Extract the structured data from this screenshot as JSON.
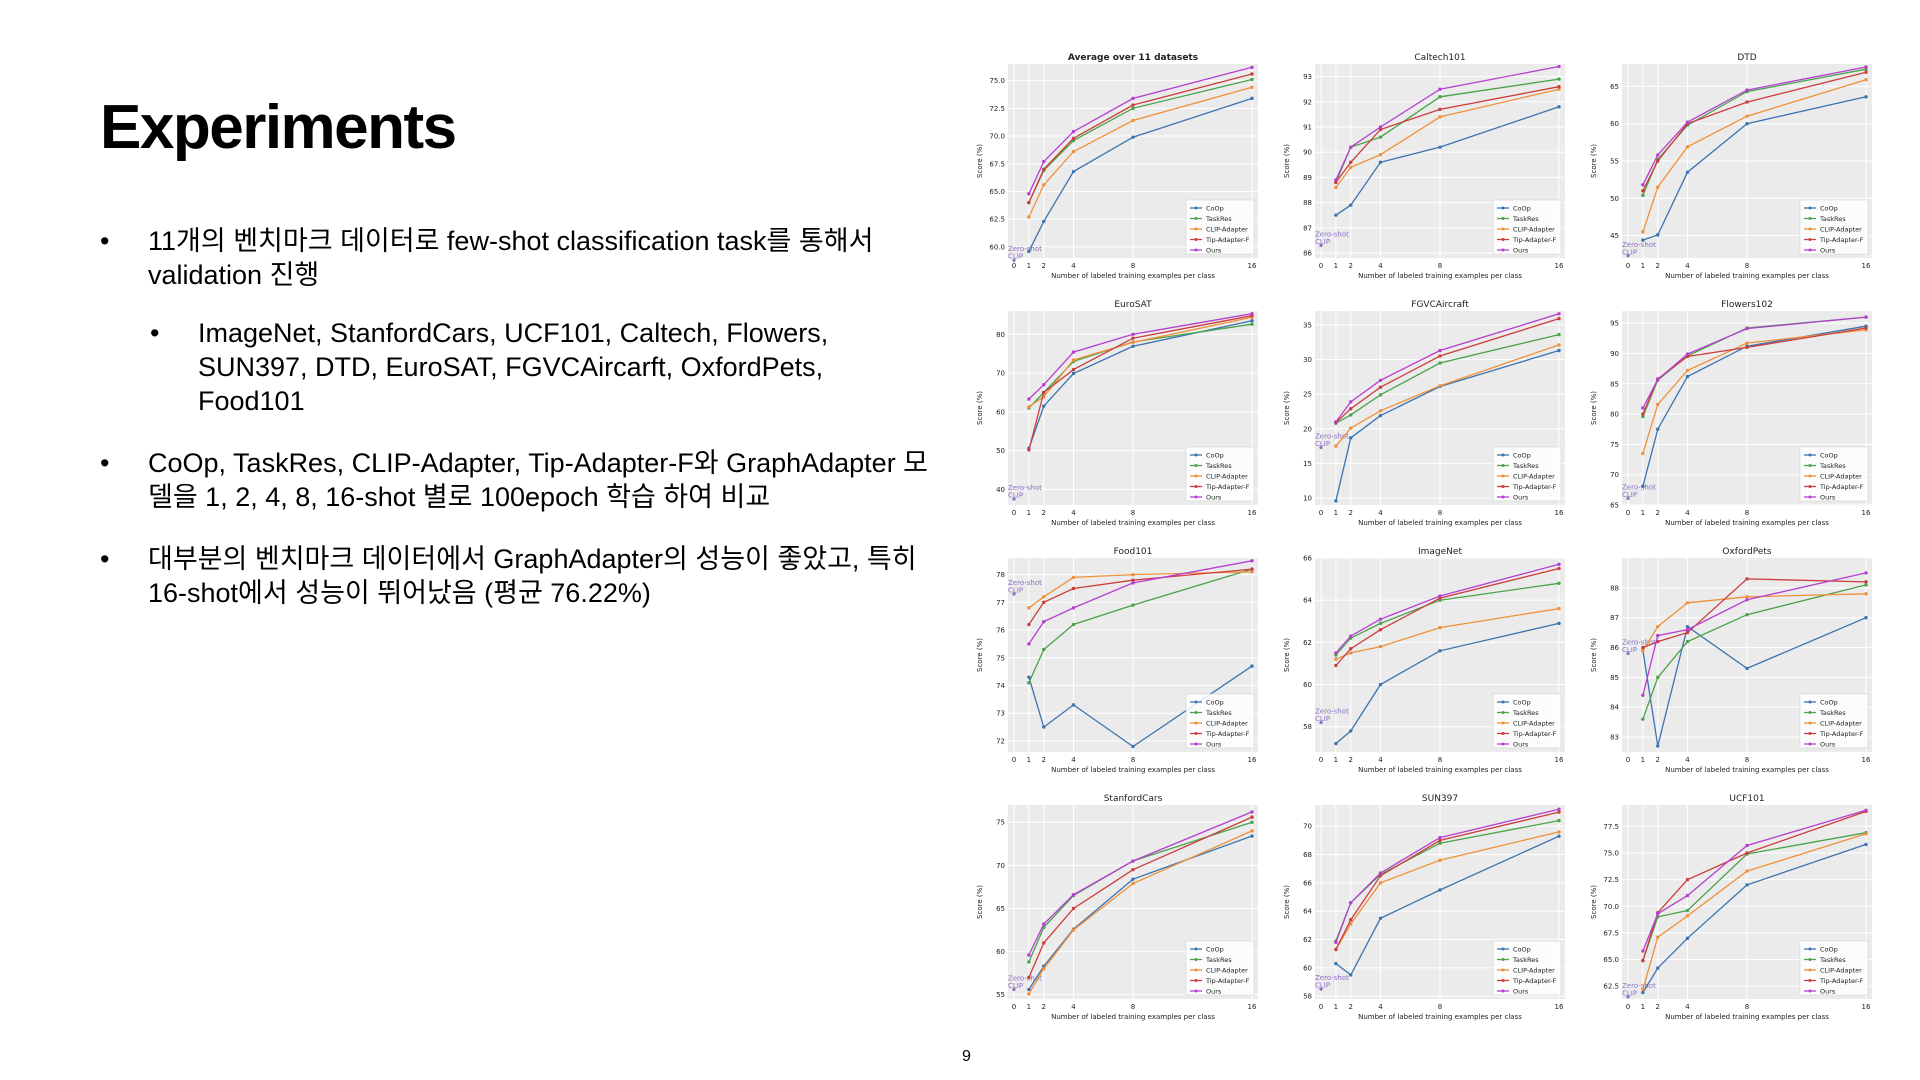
{
  "slide": {
    "title": "Experiments",
    "page_number": "9",
    "bullets": [
      {
        "level": 1,
        "text": "11개의 벤치마크 데이터로 few-shot classification task를 통해서 validation 진행"
      },
      {
        "level": 2,
        "text": "ImageNet, StanfordCars, UCF101, Caltech, Flowers, SUN397, DTD, EuroSAT, FGVCAircarft, OxfordPets, Food101"
      },
      {
        "level": 1,
        "text": "CoOp, TaskRes, CLIP-Adapter, Tip-Adapter-F와 GraphAdapter 모델을 1, 2, 4, 8, 16-shot 별로 100epoch 학습 하여 비교"
      },
      {
        "level": 1,
        "text": "대부분의 벤치마크 데이터에서 GraphAdapter의 성능이 좋았고, 특히 16-shot에서 성능이 뛰어났음 (평균 76.22%)"
      }
    ]
  },
  "chart_common": {
    "x": [
      1,
      2,
      4,
      8,
      16
    ],
    "xticks": [
      "0",
      "1",
      "2",
      "4",
      "8",
      "16"
    ],
    "xlabel": "Number of labeled training examples per class",
    "ylabel": "Score (%)",
    "zero_shot_label": [
      "Zero-shot",
      "CLIP"
    ],
    "zero_shot_color": "#8b6fc4",
    "legend_position": "lower-right",
    "grid": true,
    "background": "#ebebeb",
    "series_meta": [
      {
        "name": "CoOp",
        "color": "#3b74b0"
      },
      {
        "name": "TaskRes",
        "color": "#4aa34a"
      },
      {
        "name": "CLIP-Adapter",
        "color": "#f0903a"
      },
      {
        "name": "Tip-Adapter-F",
        "color": "#cc3d3d"
      },
      {
        "name": "Ours",
        "color": "#b63fd0"
      }
    ]
  },
  "chart_data": [
    {
      "type": "line",
      "title": "Average over 11 datasets",
      "ylim": [
        59,
        76.5
      ],
      "yticks": [
        60.0,
        62.5,
        65.0,
        67.5,
        70.0,
        72.5,
        75.0
      ],
      "yfmt": 1,
      "zero_shot": 58.8,
      "series": [
        {
          "name": "CoOp",
          "values": [
            59.6,
            62.3,
            66.8,
            69.9,
            73.4
          ]
        },
        {
          "name": "TaskRes",
          "values": [
            64.0,
            66.9,
            69.6,
            72.5,
            75.1
          ]
        },
        {
          "name": "CLIP-Adapter",
          "values": [
            62.7,
            65.6,
            68.6,
            71.4,
            74.4
          ]
        },
        {
          "name": "Tip-Adapter-F",
          "values": [
            64.0,
            67.0,
            69.8,
            72.8,
            75.6
          ]
        },
        {
          "name": "Ours",
          "values": [
            64.8,
            67.7,
            70.4,
            73.4,
            76.2
          ]
        }
      ]
    },
    {
      "type": "line",
      "title": "Caltech101",
      "ylim": [
        85.8,
        93.5
      ],
      "yticks": [
        86,
        87,
        88,
        89,
        90,
        91,
        92,
        93
      ],
      "yfmt": 0,
      "zero_shot": 86.3,
      "series": [
        {
          "name": "CoOp",
          "values": [
            87.5,
            87.9,
            89.6,
            90.2,
            91.8
          ]
        },
        {
          "name": "TaskRes",
          "values": [
            88.8,
            90.2,
            90.6,
            92.2,
            92.9
          ]
        },
        {
          "name": "CLIP-Adapter",
          "values": [
            88.6,
            89.4,
            89.9,
            91.4,
            92.5
          ]
        },
        {
          "name": "Tip-Adapter-F",
          "values": [
            88.8,
            89.6,
            90.9,
            91.7,
            92.6
          ]
        },
        {
          "name": "Ours",
          "values": [
            88.9,
            90.2,
            91.0,
            92.5,
            93.4
          ]
        }
      ]
    },
    {
      "type": "line",
      "title": "DTD",
      "ylim": [
        42,
        68
      ],
      "yticks": [
        45,
        50,
        55,
        60,
        65
      ],
      "yfmt": 0,
      "zero_shot": 42.3,
      "series": [
        {
          "name": "CoOp",
          "values": [
            44.4,
            45.1,
            53.5,
            60.0,
            63.6
          ]
        },
        {
          "name": "TaskRes",
          "values": [
            50.4,
            55.2,
            59.8,
            64.3,
            67.3
          ]
        },
        {
          "name": "CLIP-Adapter",
          "values": [
            45.5,
            51.5,
            56.9,
            61.0,
            65.9
          ]
        },
        {
          "name": "Tip-Adapter-F",
          "values": [
            51.0,
            55.0,
            60.0,
            62.9,
            66.9
          ]
        },
        {
          "name": "Ours",
          "values": [
            51.8,
            55.8,
            60.2,
            64.5,
            67.6
          ]
        }
      ]
    },
    {
      "type": "line",
      "title": "EuroSAT",
      "ylim": [
        36,
        86
      ],
      "yticks": [
        40,
        50,
        60,
        70,
        80
      ],
      "yfmt": 0,
      "zero_shot": 37.5,
      "series": [
        {
          "name": "CoOp",
          "values": [
            50.6,
            61.5,
            69.9,
            76.9,
            83.5
          ]
        },
        {
          "name": "TaskRes",
          "values": [
            61.0,
            65.0,
            73.0,
            78.0,
            82.6
          ]
        },
        {
          "name": "CLIP-Adapter",
          "values": [
            61.3,
            63.9,
            73.4,
            77.9,
            84.4
          ]
        },
        {
          "name": "Tip-Adapter-F",
          "values": [
            50.2,
            65.0,
            70.9,
            79.0,
            84.8
          ]
        },
        {
          "name": "Ours",
          "values": [
            63.3,
            67.0,
            75.4,
            80.0,
            85.3
          ]
        }
      ]
    },
    {
      "type": "line",
      "title": "FGVCAircraft",
      "ylim": [
        9,
        37
      ],
      "yticks": [
        10,
        15,
        20,
        25,
        30,
        35
      ],
      "yfmt": 0,
      "zero_shot": 17.3,
      "series": [
        {
          "name": "CoOp",
          "values": [
            9.6,
            18.7,
            21.9,
            26.1,
            31.3
          ]
        },
        {
          "name": "TaskRes",
          "values": [
            20.8,
            22.0,
            24.9,
            29.5,
            33.6
          ]
        },
        {
          "name": "CLIP-Adapter",
          "values": [
            17.5,
            20.1,
            22.6,
            26.2,
            32.1
          ]
        },
        {
          "name": "Tip-Adapter-F",
          "values": [
            20.9,
            22.9,
            26.0,
            30.5,
            35.9
          ]
        },
        {
          "name": "Ours",
          "values": [
            21.0,
            23.9,
            27.0,
            31.3,
            36.6
          ]
        }
      ]
    },
    {
      "type": "line",
      "title": "Flowers102",
      "ylim": [
        65,
        97
      ],
      "yticks": [
        65,
        70,
        75,
        80,
        85,
        90,
        95
      ],
      "yfmt": 0,
      "zero_shot": 66.1,
      "series": [
        {
          "name": "CoOp",
          "values": [
            68.1,
            77.5,
            86.2,
            91.2,
            94.5
          ]
        },
        {
          "name": "TaskRes",
          "values": [
            79.6,
            85.6,
            89.6,
            94.2,
            96.0
          ]
        },
        {
          "name": "CLIP-Adapter",
          "values": [
            73.5,
            81.6,
            87.2,
            91.7,
            93.9
          ]
        },
        {
          "name": "Tip-Adapter-F",
          "values": [
            80.0,
            85.8,
            89.5,
            91.0,
            94.2
          ]
        },
        {
          "name": "Ours",
          "values": [
            81.0,
            85.7,
            89.9,
            94.1,
            96.0
          ]
        }
      ]
    },
    {
      "type": "line",
      "title": "Food101",
      "ylim": [
        71.6,
        78.6
      ],
      "yticks": [
        72,
        73,
        74,
        75,
        76,
        77,
        78
      ],
      "yfmt": 0,
      "zero_shot": 77.3,
      "series": [
        {
          "name": "CoOp",
          "values": [
            74.3,
            72.5,
            73.3,
            71.8,
            74.7
          ]
        },
        {
          "name": "TaskRes",
          "values": [
            74.1,
            75.3,
            76.2,
            76.9,
            78.2
          ]
        },
        {
          "name": "CLIP-Adapter",
          "values": [
            76.8,
            77.2,
            77.9,
            78.0,
            78.1
          ]
        },
        {
          "name": "Tip-Adapter-F",
          "values": [
            76.2,
            77.0,
            77.5,
            77.8,
            78.2
          ]
        },
        {
          "name": "Ours",
          "values": [
            75.5,
            76.3,
            76.8,
            77.7,
            78.5
          ]
        }
      ]
    },
    {
      "type": "line",
      "title": "ImageNet",
      "ylim": [
        56.8,
        66
      ],
      "yticks": [
        58,
        60,
        62,
        64,
        66
      ],
      "yfmt": 0,
      "zero_shot": 58.2,
      "series": [
        {
          "name": "CoOp",
          "values": [
            57.2,
            57.8,
            60.0,
            61.6,
            62.9
          ]
        },
        {
          "name": "TaskRes",
          "values": [
            61.4,
            62.2,
            62.9,
            64.0,
            64.8
          ]
        },
        {
          "name": "CLIP-Adapter",
          "values": [
            61.2,
            61.5,
            61.8,
            62.7,
            63.6
          ]
        },
        {
          "name": "Tip-Adapter-F",
          "values": [
            60.9,
            61.7,
            62.6,
            64.1,
            65.5
          ]
        },
        {
          "name": "Ours",
          "values": [
            61.5,
            62.3,
            63.1,
            64.2,
            65.7
          ]
        }
      ]
    },
    {
      "type": "line",
      "title": "OxfordPets",
      "ylim": [
        82.5,
        89
      ],
      "yticks": [
        83,
        84,
        85,
        86,
        87,
        88
      ],
      "yfmt": 0,
      "zero_shot": 85.8,
      "series": [
        {
          "name": "CoOp",
          "values": [
            85.9,
            82.7,
            86.7,
            85.3,
            87.0
          ]
        },
        {
          "name": "TaskRes",
          "values": [
            83.6,
            85.0,
            86.2,
            87.1,
            88.1
          ]
        },
        {
          "name": "CLIP-Adapter",
          "values": [
            85.9,
            86.7,
            87.5,
            87.7,
            87.8
          ]
        },
        {
          "name": "Tip-Adapter-F",
          "values": [
            86.0,
            86.2,
            86.5,
            88.3,
            88.2
          ]
        },
        {
          "name": "Ours",
          "values": [
            84.4,
            86.4,
            86.6,
            87.6,
            88.5
          ]
        }
      ]
    },
    {
      "type": "line",
      "title": "StanfordCars",
      "ylim": [
        54.5,
        77
      ],
      "yticks": [
        55,
        60,
        65,
        70,
        75
      ],
      "yfmt": 0,
      "zero_shot": 55.6,
      "series": [
        {
          "name": "CoOp",
          "values": [
            55.6,
            58.3,
            62.6,
            68.4,
            73.4
          ]
        },
        {
          "name": "TaskRes",
          "values": [
            58.8,
            62.8,
            66.5,
            70.5,
            75.0
          ]
        },
        {
          "name": "CLIP-Adapter",
          "values": [
            55.1,
            58.0,
            62.5,
            67.9,
            74.0
          ]
        },
        {
          "name": "Tip-Adapter-F",
          "values": [
            57.0,
            61.0,
            65.0,
            69.5,
            75.6
          ]
        },
        {
          "name": "Ours",
          "values": [
            59.6,
            63.2,
            66.6,
            70.5,
            76.2
          ]
        }
      ]
    },
    {
      "type": "line",
      "title": "SUN397",
      "ylim": [
        57.8,
        71.5
      ],
      "yticks": [
        58,
        60,
        62,
        64,
        66,
        68,
        70
      ],
      "yfmt": 0,
      "zero_shot": 58.5,
      "series": [
        {
          "name": "CoOp",
          "values": [
            60.3,
            59.5,
            63.5,
            65.5,
            69.3
          ]
        },
        {
          "name": "TaskRes",
          "values": [
            61.9,
            64.6,
            66.6,
            68.8,
            70.4
          ]
        },
        {
          "name": "CLIP-Adapter",
          "values": [
            61.3,
            63.1,
            66.0,
            67.6,
            69.6
          ]
        },
        {
          "name": "Tip-Adapter-F",
          "values": [
            61.3,
            63.4,
            66.5,
            69.0,
            71.0
          ]
        },
        {
          "name": "Ours",
          "values": [
            61.8,
            64.6,
            66.7,
            69.2,
            71.2
          ]
        }
      ]
    },
    {
      "type": "line",
      "title": "UCF101",
      "ylim": [
        61.3,
        79.5
      ],
      "yticks": [
        62.5,
        65.0,
        67.5,
        70.0,
        72.5,
        75.0,
        77.5
      ],
      "yfmt": 1,
      "zero_shot": 61.5,
      "series": [
        {
          "name": "CoOp",
          "values": [
            61.9,
            64.2,
            67.0,
            72.0,
            75.8
          ]
        },
        {
          "name": "TaskRes",
          "values": [
            64.9,
            69.0,
            69.6,
            74.9,
            76.9
          ]
        },
        {
          "name": "CLIP-Adapter",
          "values": [
            62.2,
            67.1,
            69.1,
            73.3,
            76.8
          ]
        },
        {
          "name": "Tip-Adapter-F",
          "values": [
            64.9,
            69.4,
            72.5,
            75.0,
            78.9
          ]
        },
        {
          "name": "Ours",
          "values": [
            65.8,
            69.3,
            71.0,
            75.7,
            79.0
          ]
        }
      ]
    }
  ]
}
